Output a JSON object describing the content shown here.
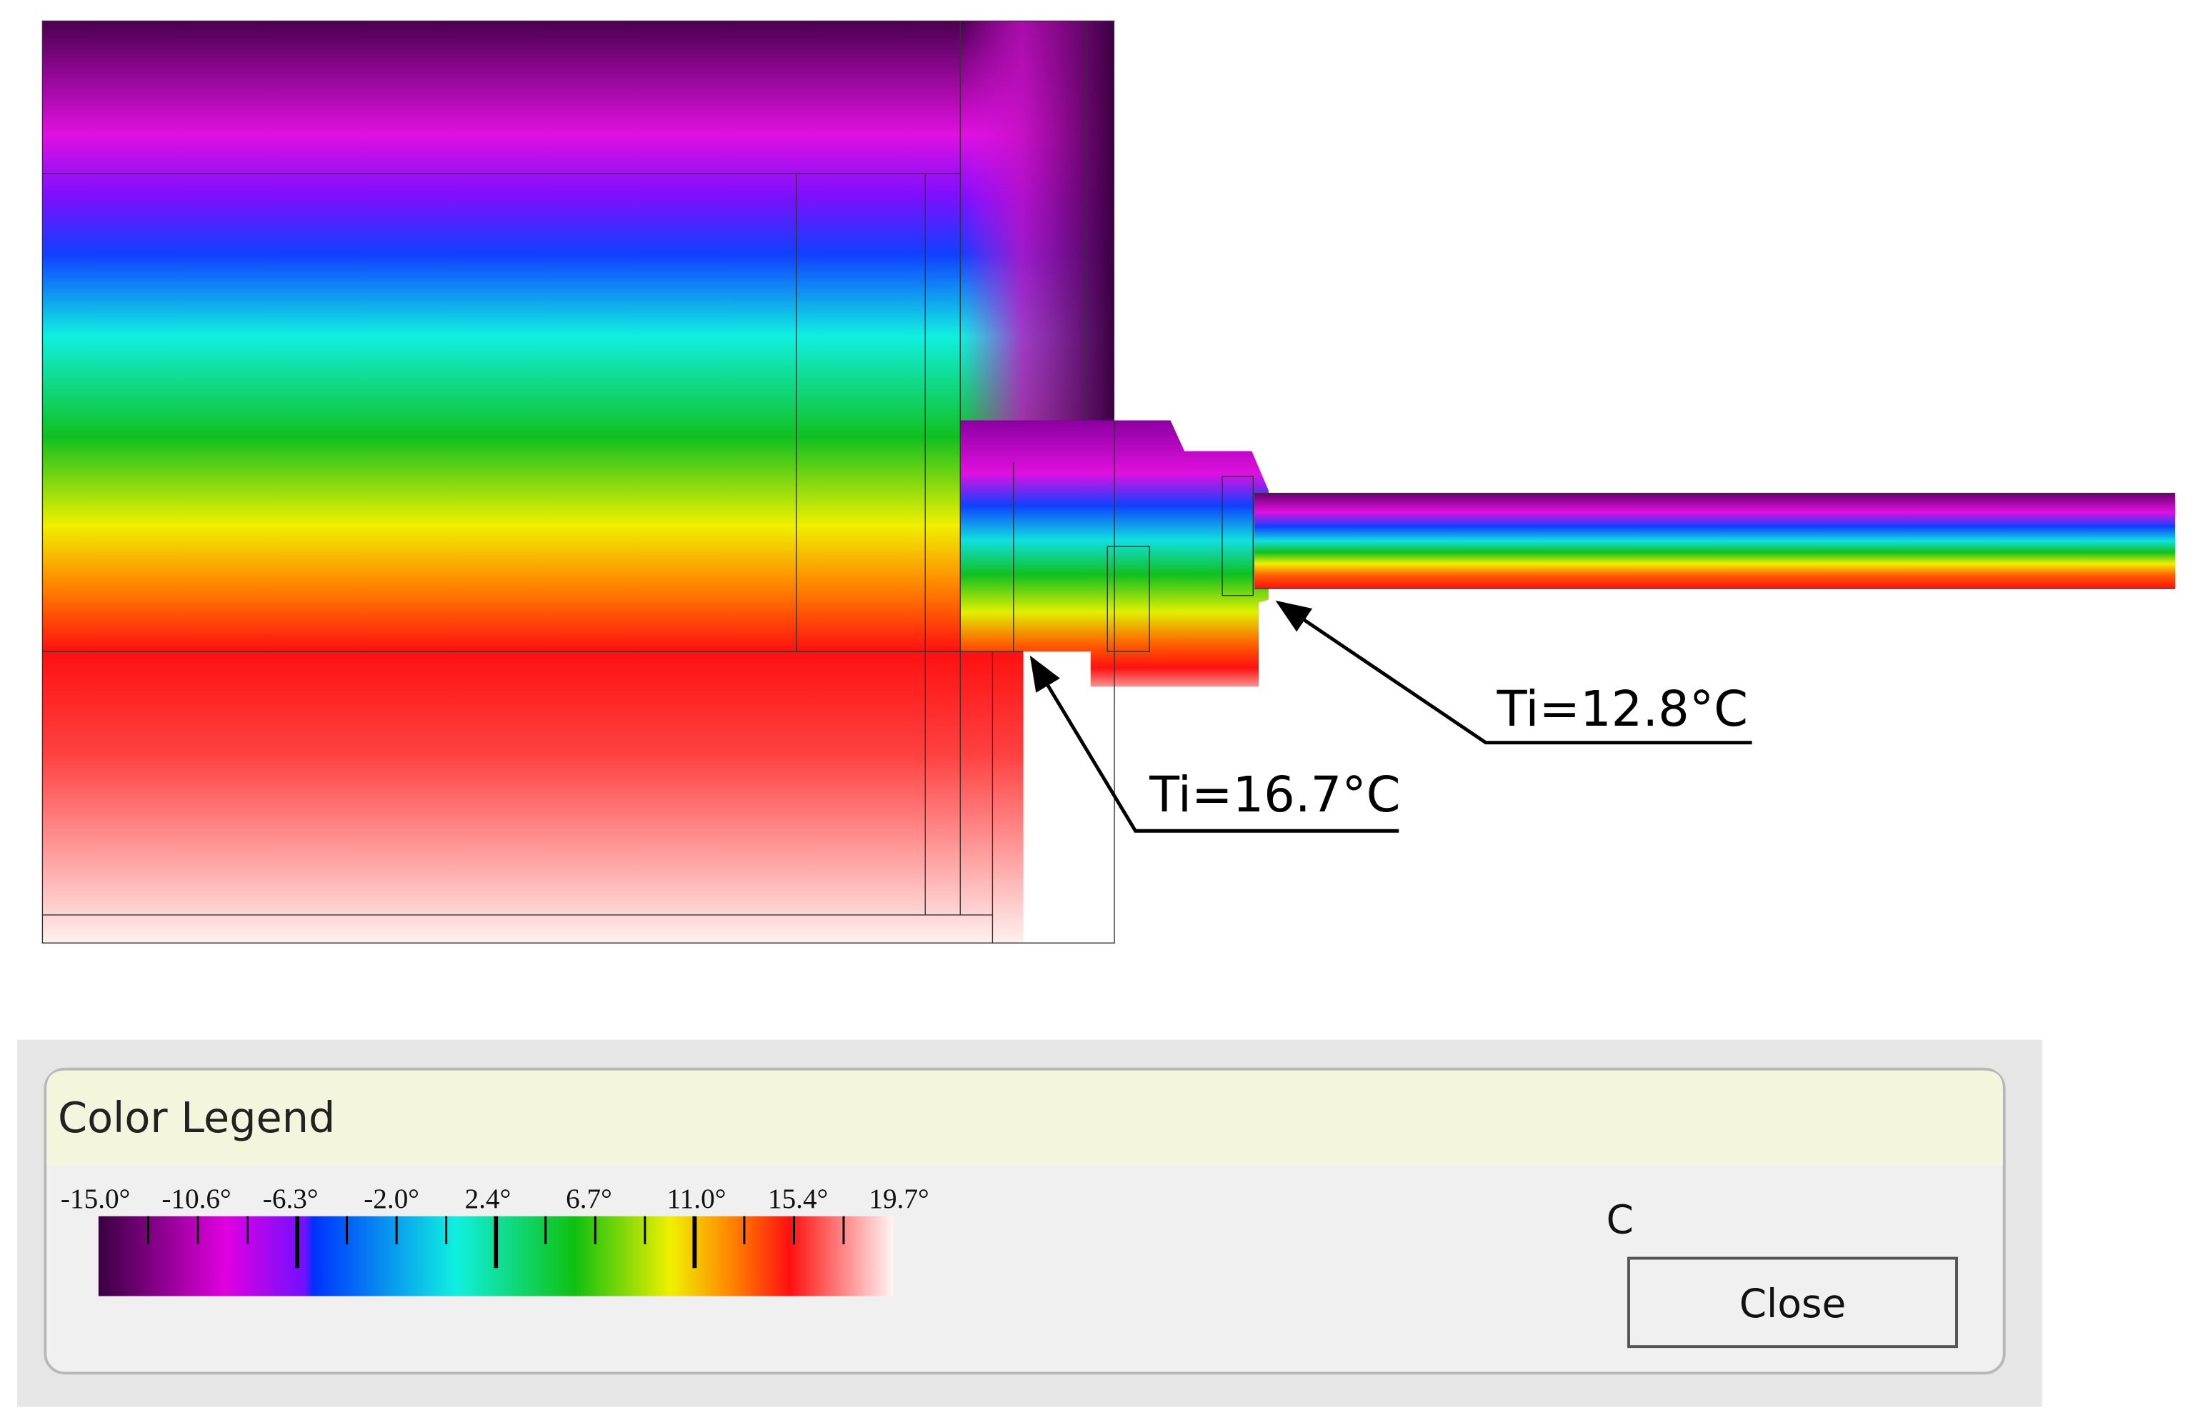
{
  "annotations": [
    {
      "label": "Ti=16.7°C"
    },
    {
      "label": "Ti=12.8°C"
    }
  ],
  "legend": {
    "title": "Color Legend",
    "ticks": [
      "-15.0°",
      "-10.6°",
      "-6.3°",
      "-2.0°",
      "2.4°",
      "6.7°",
      "11.0°",
      "15.4°",
      "19.7°"
    ],
    "unit": "C"
  },
  "buttons": {
    "close": "Close"
  }
}
